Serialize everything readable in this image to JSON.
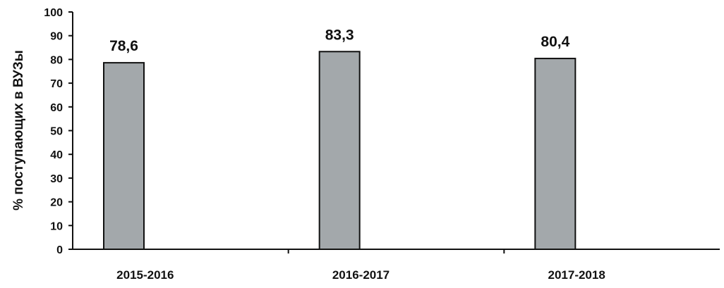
{
  "chart_data": {
    "type": "bar",
    "title": "",
    "xlabel": "",
    "ylabel": "% поступающих в ВУЗы",
    "categories": [
      "2015-2016",
      "2016-2017",
      "2017-2018"
    ],
    "values": [
      78.6,
      83.3,
      80.4
    ],
    "data_labels": [
      "78,6",
      "83,3",
      "80,4"
    ],
    "ylim": [
      0,
      100
    ],
    "yticks": [
      0,
      10,
      20,
      30,
      40,
      50,
      60,
      70,
      80,
      90,
      100
    ],
    "grid": false,
    "legend": "none",
    "colors": {
      "bar_fill": "#a3a8ab",
      "bar_stroke": "#111111",
      "axis": "#111111",
      "text": "#111111"
    }
  }
}
